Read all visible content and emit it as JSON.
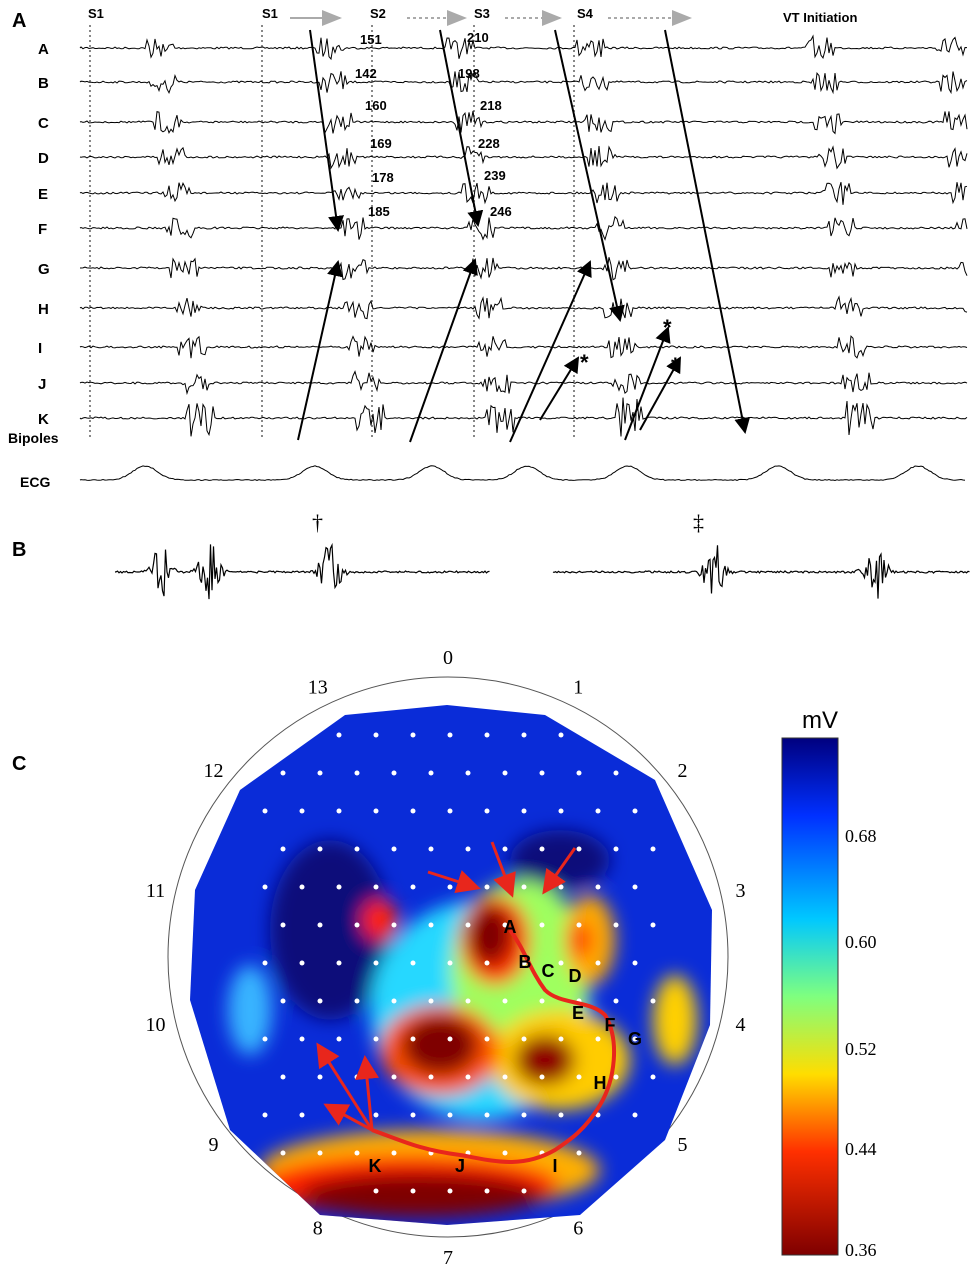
{
  "panel_a": {
    "label": "A",
    "stim_labels": [
      "S1",
      "S1",
      "S2",
      "S3",
      "S4"
    ],
    "vt_label": "VT Initiation",
    "rows": [
      "A",
      "B",
      "C",
      "D",
      "E",
      "F",
      "G",
      "H",
      "I",
      "J",
      "K"
    ],
    "intervals_1": [
      "151",
      "142",
      "160",
      "169",
      "178",
      "185"
    ],
    "intervals_2": [
      "210",
      "198",
      "218",
      "228",
      "239",
      "246"
    ],
    "markers": [
      "*",
      "*",
      "*"
    ],
    "bipoles": "Bipoles",
    "ecg": "ECG"
  },
  "panel_b": {
    "label": "B",
    "symbols": [
      "†",
      "‡"
    ]
  },
  "panel_c": {
    "label": "C",
    "clock_labels": [
      "0",
      "1",
      "2",
      "3",
      "4",
      "5",
      "6",
      "7",
      "8",
      "9",
      "10",
      "11",
      "12",
      "13"
    ],
    "site_labels": [
      "A",
      "B",
      "C",
      "D",
      "E",
      "F",
      "G",
      "H",
      "I",
      "J",
      "K"
    ],
    "colorbar": {
      "unit": "mV",
      "ticks": [
        "0.68",
        "0.60",
        "0.52",
        "0.44",
        "0.36"
      ]
    }
  }
}
